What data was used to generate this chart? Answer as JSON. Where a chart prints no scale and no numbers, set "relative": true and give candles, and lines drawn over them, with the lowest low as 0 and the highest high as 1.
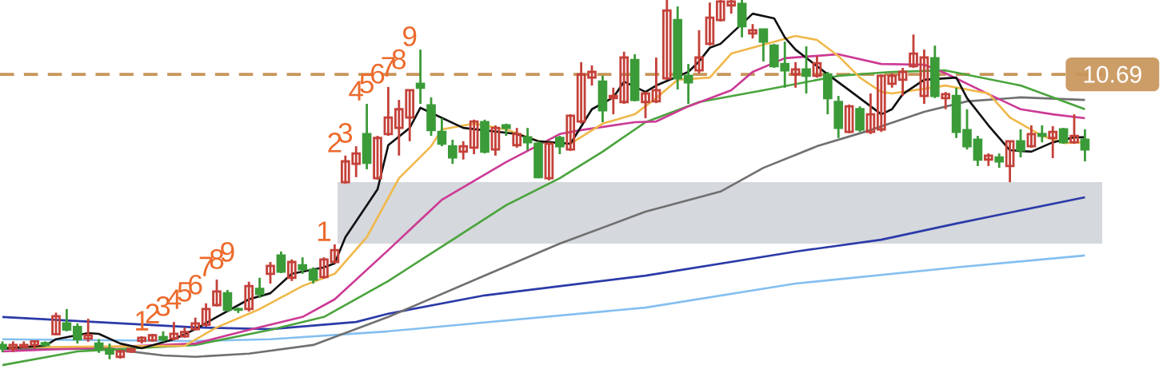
{
  "chart_data": {
    "type": "candlestick",
    "relative": true,
    "categories": [
      null,
      null,
      null,
      null,
      null,
      null,
      null,
      null,
      null,
      null,
      null,
      null,
      null,
      null,
      null,
      null,
      null,
      null,
      null,
      null,
      null,
      null,
      null,
      null,
      null,
      null,
      null,
      null,
      null,
      null,
      null,
      null,
      null,
      null,
      null,
      null,
      null,
      null,
      null,
      null,
      null,
      null,
      null,
      null,
      null,
      null,
      null,
      null,
      null,
      null,
      null,
      null,
      null,
      null,
      null,
      null,
      null,
      null,
      null,
      null,
      null,
      null,
      null,
      null,
      null,
      null,
      null,
      null,
      null,
      null,
      null,
      null,
      null,
      null,
      null,
      null,
      null,
      null,
      null,
      null,
      null,
      null,
      null,
      null,
      null,
      null,
      null,
      null,
      null,
      null,
      null,
      null,
      null,
      null,
      null,
      null,
      null,
      null,
      null,
      null,
      null,
      null
    ],
    "ohlc": [
      [
        0.04,
        0.05,
        0.02,
        0.03
      ],
      [
        0.03,
        0.05,
        0.02,
        0.04
      ],
      [
        0.035,
        0.05,
        0.03,
        0.04
      ],
      [
        0.04,
        0.05,
        0.03,
        0.05
      ],
      [
        0.045,
        0.05,
        0.035,
        0.04
      ],
      [
        0.07,
        0.13,
        0.067,
        0.12
      ],
      [
        0.1,
        0.14,
        0.078,
        0.083
      ],
      [
        0.09,
        0.1,
        0.044,
        0.056
      ],
      [
        0.058,
        0.113,
        0.049,
        0.067
      ],
      [
        0.044,
        0.056,
        0.018,
        0.029
      ],
      [
        0.029,
        0.044,
        0.0,
        0.016
      ],
      [
        0.007,
        0.027,
        0.002,
        0.022
      ],
      [
        0.022,
        0.031,
        0.018,
        0.029
      ],
      [
        0.051,
        0.064,
        0.044,
        0.06
      ],
      [
        0.053,
        0.071,
        0.049,
        0.067
      ],
      [
        0.062,
        0.078,
        0.049,
        0.056
      ],
      [
        0.058,
        0.104,
        0.053,
        0.071
      ],
      [
        0.064,
        0.089,
        0.06,
        0.076
      ],
      [
        0.084,
        0.116,
        0.08,
        0.1
      ],
      [
        0.096,
        0.156,
        0.091,
        0.14
      ],
      [
        0.151,
        0.222,
        0.147,
        0.189
      ],
      [
        0.184,
        0.193,
        0.133,
        0.138
      ],
      [
        0.14,
        0.144,
        0.129,
        0.138
      ],
      [
        0.14,
        0.216,
        0.133,
        0.204
      ],
      [
        0.196,
        0.227,
        0.171,
        0.182
      ],
      [
        0.238,
        0.271,
        0.211,
        0.26
      ],
      [
        0.289,
        0.3,
        0.24,
        0.244
      ],
      [
        0.227,
        0.278,
        0.218,
        0.271
      ],
      [
        0.262,
        0.284,
        0.238,
        0.251
      ],
      [
        0.249,
        0.256,
        0.211,
        0.222
      ],
      [
        0.229,
        0.284,
        0.224,
        0.278
      ],
      [
        0.271,
        0.32,
        0.267,
        0.304
      ],
      [
        0.493,
        0.567,
        0.489,
        0.551
      ],
      [
        0.544,
        0.593,
        0.507,
        0.573
      ],
      [
        0.627,
        0.711,
        0.529,
        0.547
      ],
      [
        0.504,
        0.622,
        0.5,
        0.616
      ],
      [
        0.627,
        0.758,
        0.622,
        0.673
      ],
      [
        0.644,
        0.722,
        0.567,
        0.696
      ],
      [
        0.673,
        0.751,
        0.607,
        0.749
      ],
      [
        0.767,
        0.862,
        0.711,
        0.756
      ],
      [
        0.707,
        0.729,
        0.622,
        0.638
      ],
      [
        0.633,
        0.671,
        0.593,
        0.6
      ],
      [
        0.593,
        0.611,
        0.544,
        0.562
      ],
      [
        0.578,
        0.607,
        0.556,
        0.593
      ],
      [
        0.589,
        0.667,
        0.571,
        0.662
      ],
      [
        0.66,
        0.667,
        0.573,
        0.578
      ],
      [
        0.584,
        0.651,
        0.567,
        0.644
      ],
      [
        0.651,
        0.656,
        0.622,
        0.644
      ],
      [
        0.596,
        0.644,
        0.589,
        0.627
      ],
      [
        0.618,
        0.644,
        0.582,
        0.604
      ],
      [
        0.6,
        0.607,
        0.504,
        0.507
      ],
      [
        0.504,
        0.604,
        0.498,
        0.6
      ],
      [
        0.616,
        0.622,
        0.571,
        0.593
      ],
      [
        0.584,
        0.682,
        0.58,
        0.678
      ],
      [
        0.662,
        0.827,
        0.656,
        0.793
      ],
      [
        0.784,
        0.818,
        0.762,
        0.8
      ],
      [
        0.773,
        0.789,
        0.66,
        0.693
      ],
      [
        0.727,
        0.756,
        0.682,
        0.733
      ],
      [
        0.716,
        0.856,
        0.711,
        0.84
      ],
      [
        0.833,
        0.849,
        0.718,
        0.722
      ],
      [
        0.716,
        0.744,
        0.671,
        0.74
      ],
      [
        0.718,
        0.84,
        0.713,
        0.749
      ],
      [
        0.782,
        1.0,
        0.778,
        0.971
      ],
      [
        0.944,
        0.982,
        0.751,
        0.782
      ],
      [
        0.789,
        0.822,
        0.711,
        0.771
      ],
      [
        0.804,
        0.916,
        0.796,
        0.84
      ],
      [
        0.878,
        0.993,
        0.873,
        0.951
      ],
      [
        0.944,
        1.0,
        0.94,
        0.996
      ],
      [
        0.985,
        1.0,
        0.962,
        0.996
      ],
      [
        0.989,
        1.0,
        0.896,
        0.927
      ],
      [
        0.907,
        0.933,
        0.893,
        0.916
      ],
      [
        0.918,
        0.918,
        0.829,
        0.884
      ],
      [
        0.873,
        0.878,
        0.811,
        0.816
      ],
      [
        0.822,
        0.884,
        0.756,
        0.804
      ],
      [
        0.793,
        0.827,
        0.756,
        0.807
      ],
      [
        0.807,
        0.871,
        0.74,
        0.789
      ],
      [
        0.789,
        0.844,
        0.784,
        0.824
      ],
      [
        0.793,
        0.8,
        0.682,
        0.727
      ],
      [
        0.716,
        0.733,
        0.616,
        0.644
      ],
      [
        0.633,
        0.709,
        0.629,
        0.704
      ],
      [
        0.696,
        0.704,
        0.633,
        0.64
      ],
      [
        0.633,
        0.74,
        0.627,
        0.682
      ],
      [
        0.64,
        0.793,
        0.633,
        0.789
      ],
      [
        0.767,
        0.796,
        0.756,
        0.789
      ],
      [
        0.778,
        0.811,
        0.733,
        0.8
      ],
      [
        0.816,
        0.904,
        0.811,
        0.851
      ],
      [
        0.733,
        0.862,
        0.711,
        0.84
      ],
      [
        0.838,
        0.873,
        0.727,
        0.733
      ],
      [
        0.727,
        0.744,
        0.696,
        0.738
      ],
      [
        0.733,
        0.756,
        0.616,
        0.633
      ],
      [
        0.638,
        0.696,
        0.584,
        0.593
      ],
      [
        0.611,
        0.622,
        0.538,
        0.556
      ],
      [
        0.556,
        0.573,
        0.538,
        0.567
      ],
      [
        0.562,
        0.573,
        0.533,
        0.551
      ],
      [
        0.538,
        0.607,
        0.493,
        0.607
      ],
      [
        0.607,
        0.64,
        0.562,
        0.582
      ],
      [
        0.593,
        0.651,
        0.589,
        0.627
      ],
      [
        0.627,
        0.651,
        0.604,
        0.622
      ],
      [
        0.616,
        0.649,
        0.56,
        0.633
      ],
      [
        0.64,
        0.644,
        0.6,
        0.604
      ],
      [
        0.604,
        0.682,
        0.6,
        0.622
      ],
      [
        0.611,
        0.64,
        0.551,
        0.584
      ]
    ],
    "colors": [
      "#3b9b38",
      "#c4413a",
      "#c4413a",
      "#c4413a",
      "#3b9b38",
      "#c4413a",
      "#3b9b38",
      "#3b9b38",
      "#c4413a",
      "#3b9b38",
      "#3b9b38",
      "#c4413a",
      "#c4413a",
      "#c4413a",
      "#c4413a",
      "#3b9b38",
      "#c4413a",
      "#c4413a",
      "#c4413a",
      "#c4413a",
      "#c4413a",
      "#3b9b38",
      "#3b9b38",
      "#c4413a",
      "#3b9b38",
      "#c4413a",
      "#3b9b38",
      "#c4413a",
      "#3b9b38",
      "#3b9b38",
      "#c4413a",
      "#c4413a",
      "#c4413a",
      "#c4413a",
      "#3b9b38",
      "#c4413a",
      "#c4413a",
      "#c4413a",
      "#c4413a",
      "#3b9b38",
      "#3b9b38",
      "#3b9b38",
      "#3b9b38",
      "#c4413a",
      "#c4413a",
      "#3b9b38",
      "#c4413a",
      "#3b9b38",
      "#c4413a",
      "#3b9b38",
      "#3b9b38",
      "#c4413a",
      "#3b9b38",
      "#c4413a",
      "#c4413a",
      "#c4413a",
      "#3b9b38",
      "#c4413a",
      "#c4413a",
      "#3b9b38",
      "#c4413a",
      "#c4413a",
      "#c4413a",
      "#3b9b38",
      "#3b9b38",
      "#c4413a",
      "#c4413a",
      "#c4413a",
      "#c4413a",
      "#3b9b38",
      "#c4413a",
      "#3b9b38",
      "#3b9b38",
      "#3b9b38",
      "#c4413a",
      "#3b9b38",
      "#c4413a",
      "#3b9b38",
      "#3b9b38",
      "#c4413a",
      "#3b9b38",
      "#c4413a",
      "#c4413a",
      "#c4413a",
      "#c4413a",
      "#c4413a",
      "#c4413a",
      "#3b9b38",
      "#c4413a",
      "#3b9b38",
      "#3b9b38",
      "#3b9b38",
      "#c4413a",
      "#3b9b38",
      "#c4413a",
      "#3b9b38",
      "#c4413a",
      "#3b9b38",
      "#c4413a",
      "#3b9b38",
      "#c4413a",
      "#3b9b38"
    ],
    "value_labels": [
      null,
      null,
      null,
      null,
      null,
      null,
      null,
      null,
      null,
      null,
      null,
      null,
      null,
      "1",
      "2",
      "3",
      "4",
      "5",
      "6",
      "7",
      "8",
      "9",
      null,
      null,
      null,
      null,
      null,
      null,
      null,
      null,
      "1",
      "2",
      "3",
      "4",
      "5",
      "6",
      "7",
      "8",
      "9",
      null,
      null,
      null,
      null,
      null,
      null,
      null,
      null,
      null,
      null,
      null,
      null,
      null,
      null,
      null,
      null,
      null,
      null,
      null,
      null,
      null,
      null,
      null,
      null,
      null,
      null,
      null,
      null,
      null,
      null,
      null,
      null,
      null,
      null,
      null,
      null,
      null,
      null,
      null,
      null,
      null,
      null,
      null,
      null,
      null,
      null,
      null,
      null,
      null,
      null,
      null,
      null,
      null,
      null,
      null,
      null,
      null,
      null,
      null,
      null,
      null,
      null,
      null
    ],
    "series": [
      {
        "type": "line",
        "color": "#84bff0",
        "values": [
          0.056,
          null,
          null,
          null,
          null,
          null,
          null,
          null,
          null,
          null,
          null,
          null,
          null,
          null,
          null,
          null,
          null,
          null,
          0.051,
          null,
          null,
          null,
          null,
          null,
          null,
          0.056,
          null,
          null,
          null,
          null,
          null,
          null,
          null,
          null,
          null,
          null,
          0.078,
          null,
          null,
          null,
          null,
          null,
          null,
          null,
          null,
          null,
          null,
          null,
          null,
          null,
          null,
          null,
          null,
          null,
          null,
          null,
          null,
          null,
          null,
          null,
          0.144,
          null,
          null,
          null,
          null,
          null,
          null,
          null,
          null,
          null,
          null,
          null,
          null,
          null,
          0.211,
          null,
          null,
          null,
          null,
          null,
          null,
          null,
          null,
          null,
          null,
          null,
          null,
          null,
          null,
          0.256,
          null,
          null,
          null,
          null,
          null,
          null,
          null,
          null,
          null,
          null,
          null,
          0.289
        ]
      },
      {
        "type": "line",
        "color": "#2b3aa8",
        "values": [
          0.118,
          null,
          null,
          null,
          null,
          null,
          null,
          null,
          null,
          null,
          null,
          null,
          null,
          null,
          null,
          null,
          null,
          null,
          0.089,
          null,
          null,
          null,
          null,
          null,
          null,
          0.084,
          null,
          null,
          null,
          null,
          null,
          null,
          null,
          0.104,
          null,
          null,
          0.127,
          null,
          null,
          null,
          null,
          null,
          null,
          null,
          null,
          0.178,
          null,
          null,
          null,
          null,
          null,
          null,
          null,
          null,
          null,
          null,
          null,
          null,
          null,
          null,
          0.233,
          null,
          null,
          null,
          null,
          null,
          null,
          null,
          null,
          null,
          null,
          null,
          null,
          null,
          0.3,
          null,
          null,
          null,
          null,
          null,
          null,
          null,
          0.333,
          null,
          null,
          null,
          null,
          null,
          null,
          0.378,
          null,
          null,
          null,
          null,
          null,
          null,
          null,
          null,
          null,
          null,
          null,
          0.451
        ]
      },
      {
        "type": "line",
        "color": "#707070",
        "values": [
          0.029,
          null,
          null,
          null,
          null,
          null,
          null,
          null,
          null,
          null,
          0.029,
          null,
          null,
          null,
          null,
          0.011,
          null,
          null,
          0.007,
          null,
          null,
          null,
          null,
          0.016,
          null,
          null,
          null,
          null,
          null,
          0.04,
          null,
          null,
          null,
          null,
          null,
          null,
          0.118,
          null,
          null,
          null,
          null,
          null,
          null,
          null,
          null,
          0.233,
          null,
          null,
          null,
          null,
          null,
          null,
          0.322,
          null,
          null,
          null,
          null,
          null,
          null,
          null,
          0.411,
          null,
          null,
          null,
          null,
          null,
          null,
          0.467,
          null,
          null,
          null,
          0.533,
          null,
          null,
          null,
          null,
          0.593,
          null,
          null,
          null,
          null,
          0.638,
          null,
          null,
          null,
          null,
          0.689,
          null,
          null,
          null,
          0.718,
          null,
          null,
          null,
          null,
          0.729,
          null,
          null,
          null,
          null,
          null,
          0.722
        ]
      },
      {
        "type": "line",
        "color": "#4aa43d",
        "values": [
          -0.016,
          null,
          null,
          null,
          null,
          null,
          null,
          0.022,
          null,
          null,
          null,
          null,
          null,
          null,
          null,
          null,
          null,
          null,
          0.04,
          null,
          null,
          null,
          null,
          null,
          null,
          0.082,
          null,
          null,
          null,
          null,
          0.118,
          null,
          null,
          null,
          null,
          null,
          0.218,
          null,
          null,
          null,
          null,
          null,
          0.333,
          null,
          null,
          null,
          null,
          0.429,
          null,
          null,
          null,
          null,
          0.504,
          null,
          null,
          null,
          0.578,
          null,
          null,
          null,
          0.66,
          null,
          null,
          null,
          null,
          0.716,
          null,
          null,
          null,
          null,
          null,
          0.749,
          null,
          null,
          null,
          null,
          null,
          null,
          0.789,
          null,
          null,
          null,
          null,
          0.8,
          null,
          null,
          null,
          null,
          0.804,
          null,
          null,
          null,
          null,
          null,
          null,
          0.762,
          null,
          null,
          null,
          null,
          null,
          0.696
        ]
      },
      {
        "type": "line",
        "color": "#cc3a95",
        "values": [
          0.022,
          null,
          null,
          null,
          null,
          null,
          null,
          null,
          null,
          null,
          null,
          null,
          null,
          null,
          null,
          null,
          null,
          null,
          0.044,
          null,
          null,
          null,
          null,
          0.082,
          null,
          null,
          null,
          null,
          0.118,
          null,
          null,
          0.167,
          null,
          null,
          null,
          null,
          0.304,
          null,
          null,
          null,
          null,
          0.444,
          null,
          null,
          null,
          null,
          null,
          0.549,
          null,
          null,
          null,
          null,
          0.627,
          null,
          0.638,
          null,
          null,
          null,
          null,
          0.66,
          null,
          0.662,
          null,
          null,
          0.704,
          null,
          null,
          null,
          0.749,
          null,
          0.8,
          null,
          null,
          0.838,
          null,
          null,
          null,
          null,
          0.849,
          null,
          null,
          null,
          0.822,
          null,
          null,
          null,
          0.82,
          null,
          0.796,
          null,
          null,
          null,
          0.738,
          null,
          null,
          0.696,
          null,
          null,
          0.682,
          null,
          null,
          0.671
        ]
      },
      {
        "type": "line",
        "color": "#f0b84a",
        "values": [
          0.033,
          null,
          null,
          null,
          null,
          null,
          null,
          null,
          null,
          null,
          null,
          null,
          null,
          null,
          null,
          null,
          null,
          0.038,
          null,
          null,
          0.089,
          null,
          null,
          null,
          0.14,
          null,
          null,
          null,
          0.204,
          null,
          null,
          0.238,
          null,
          null,
          0.34,
          null,
          null,
          0.504,
          null,
          null,
          0.593,
          0.64,
          null,
          null,
          0.656,
          null,
          null,
          0.64,
          null,
          null,
          0.607,
          null,
          null,
          0.6,
          null,
          null,
          0.656,
          null,
          null,
          0.682,
          null,
          0.727,
          null,
          0.778,
          null,
          null,
          0.784,
          null,
          0.851,
          null,
          null,
          null,
          null,
          null,
          0.9,
          null,
          0.889,
          null,
          0.844,
          null,
          0.784,
          null,
          0.744,
          0.74,
          null,
          null,
          null,
          null,
          0.762,
          null,
          null,
          null,
          0.74,
          null,
          0.673,
          null,
          null,
          0.622,
          null,
          0.602,
          null,
          0.604
        ]
      },
      {
        "type": "line",
        "color": "#111111",
        "values": [
          0.03,
          null,
          null,
          null,
          0.038,
          0.056,
          null,
          null,
          0.073,
          0.071,
          null,
          0.044,
          null,
          0.031,
          null,
          null,
          0.056,
          null,
          0.084,
          null,
          0.118,
          null,
          null,
          0.167,
          null,
          0.184,
          null,
          0.238,
          null,
          null,
          0.256,
          0.267,
          0.34,
          null,
          null,
          0.473,
          0.596,
          null,
          0.644,
          0.7,
          null,
          null,
          null,
          0.644,
          null,
          null,
          null,
          null,
          0.627,
          null,
          0.607,
          null,
          null,
          0.6,
          null,
          0.696,
          null,
          0.729,
          0.773,
          null,
          0.744,
          0.762,
          null,
          null,
          0.8,
          0.829,
          0.867,
          0.878,
          null,
          null,
          0.962,
          null,
          0.949,
          0.896,
          0.862,
          null,
          0.816,
          0.793,
          null,
          0.749,
          null,
          null,
          0.682,
          0.696,
          0.738,
          null,
          0.778,
          null,
          null,
          0.784,
          0.727,
          null,
          0.651,
          null,
          0.582,
          null,
          0.578,
          null,
          0.604,
          null,
          0.618,
          0.618
        ]
      }
    ],
    "ref_lines": [
      {
        "axis": "y",
        "value": 0.793,
        "color": "#c8955a",
        "line_style": "dashed"
      }
    ],
    "bands": [
      {
        "axis": "y",
        "from": 0.322,
        "to": 0.493,
        "color": "#d5d8dc"
      }
    ],
    "annotations": [
      "10.69"
    ]
  }
}
